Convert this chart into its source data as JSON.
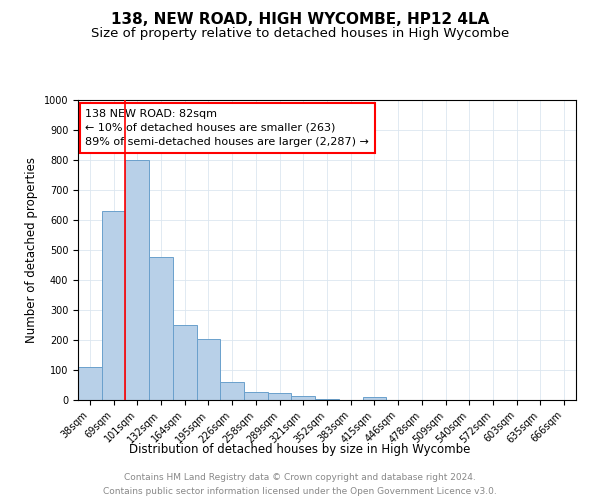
{
  "title1": "138, NEW ROAD, HIGH WYCOMBE, HP12 4LA",
  "title2": "Size of property relative to detached houses in High Wycombe",
  "xlabel": "Distribution of detached houses by size in High Wycombe",
  "ylabel": "Number of detached properties",
  "annotation_line1": "138 NEW ROAD: 82sqm",
  "annotation_line2": "← 10% of detached houses are smaller (263)",
  "annotation_line3": "89% of semi-detached houses are larger (2,287) →",
  "footer_line1": "Contains HM Land Registry data © Crown copyright and database right 2024.",
  "footer_line2": "Contains public sector information licensed under the Open Government Licence v3.0.",
  "categories": [
    "38sqm",
    "69sqm",
    "101sqm",
    "132sqm",
    "164sqm",
    "195sqm",
    "226sqm",
    "258sqm",
    "289sqm",
    "321sqm",
    "352sqm",
    "383sqm",
    "415sqm",
    "446sqm",
    "478sqm",
    "509sqm",
    "540sqm",
    "572sqm",
    "603sqm",
    "635sqm",
    "666sqm"
  ],
  "values": [
    110,
    630,
    800,
    478,
    250,
    203,
    60,
    27,
    22,
    14,
    5,
    0,
    11,
    0,
    0,
    0,
    0,
    0,
    0,
    0,
    0
  ],
  "bar_color": "#b8d0e8",
  "bar_edge_color": "#6aa0cc",
  "red_line_x": 1.5,
  "ylim": [
    0,
    1000
  ],
  "yticks": [
    0,
    100,
    200,
    300,
    400,
    500,
    600,
    700,
    800,
    900,
    1000
  ],
  "grid_color": "#dce6f0",
  "title1_fontsize": 11,
  "title2_fontsize": 9.5,
  "xlabel_fontsize": 8.5,
  "ylabel_fontsize": 8.5,
  "tick_fontsize": 7,
  "annotation_fontsize": 8,
  "footer_fontsize": 6.5
}
